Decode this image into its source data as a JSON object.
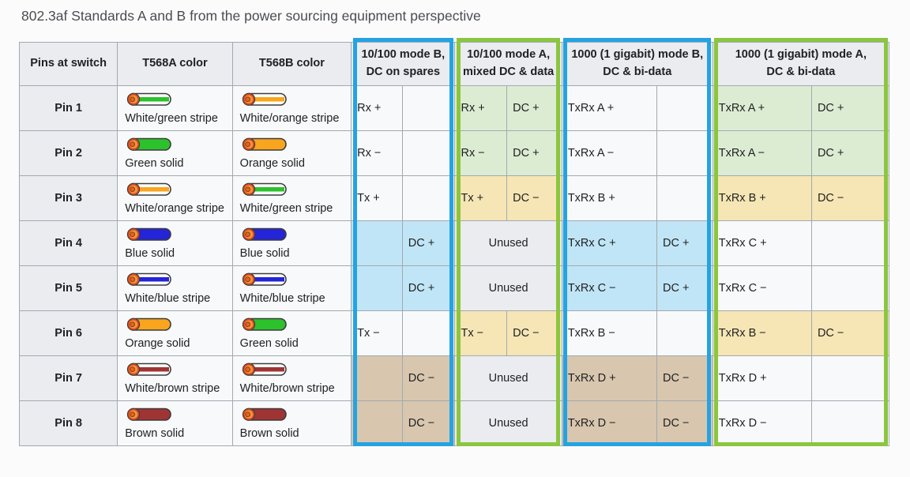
{
  "title": "802.3af Standards A and B from the power sourcing equipment perspective",
  "table": {
    "headers": {
      "pins": "Pins at switch",
      "t568a": "T568A color",
      "t568b": "T568B color",
      "groups": [
        {
          "id": "m10b",
          "lines": [
            "10/100 mode B,",
            "DC on spares"
          ],
          "outline": "blue"
        },
        {
          "id": "m10a",
          "lines": [
            "10/100 mode A,",
            "mixed DC & data"
          ],
          "outline": "green"
        },
        {
          "id": "m1000b",
          "lines": [
            "1000 (1 gigabit) mode B,",
            "DC & bi-data"
          ],
          "outline": "blue"
        },
        {
          "id": "m1000a",
          "lines": [
            "1000 (1 gigabit) mode A,",
            "DC & bi-data"
          ],
          "outline": "green"
        }
      ]
    },
    "unused_label": "Unused",
    "rows": [
      {
        "pin": "Pin 1",
        "t568a": {
          "style": "stripe",
          "color": "green",
          "label": "White/green stripe"
        },
        "t568b": {
          "style": "stripe",
          "color": "orange",
          "label": "White/orange stripe"
        },
        "modes": {
          "m10b": [
            {
              "t": "Rx +",
              "bg": "plain"
            },
            {
              "t": "",
              "bg": "plain"
            }
          ],
          "m10a": [
            {
              "t": "Rx +",
              "bg": "green"
            },
            {
              "t": "DC +",
              "bg": "green"
            }
          ],
          "m1000b": [
            {
              "t": "TxRx A +",
              "bg": "plain"
            },
            {
              "t": "",
              "bg": "plain"
            }
          ],
          "m1000a": [
            {
              "t": "TxRx A +",
              "bg": "green"
            },
            {
              "t": "DC +",
              "bg": "green"
            }
          ]
        }
      },
      {
        "pin": "Pin 2",
        "t568a": {
          "style": "solid",
          "color": "green",
          "label": "Green solid"
        },
        "t568b": {
          "style": "solid",
          "color": "orange",
          "label": "Orange solid"
        },
        "modes": {
          "m10b": [
            {
              "t": "Rx −",
              "bg": "plain"
            },
            {
              "t": "",
              "bg": "plain"
            }
          ],
          "m10a": [
            {
              "t": "Rx −",
              "bg": "green"
            },
            {
              "t": "DC +",
              "bg": "green"
            }
          ],
          "m1000b": [
            {
              "t": "TxRx A −",
              "bg": "plain"
            },
            {
              "t": "",
              "bg": "plain"
            }
          ],
          "m1000a": [
            {
              "t": "TxRx A −",
              "bg": "green"
            },
            {
              "t": "DC +",
              "bg": "green"
            }
          ]
        }
      },
      {
        "pin": "Pin 3",
        "t568a": {
          "style": "stripe",
          "color": "orange",
          "label": "White/orange stripe"
        },
        "t568b": {
          "style": "stripe",
          "color": "green",
          "label": "White/green stripe"
        },
        "modes": {
          "m10b": [
            {
              "t": "Tx +",
              "bg": "plain"
            },
            {
              "t": "",
              "bg": "plain"
            }
          ],
          "m10a": [
            {
              "t": "Tx +",
              "bg": "yellow"
            },
            {
              "t": "DC −",
              "bg": "yellow"
            }
          ],
          "m1000b": [
            {
              "t": "TxRx B +",
              "bg": "plain"
            },
            {
              "t": "",
              "bg": "plain"
            }
          ],
          "m1000a": [
            {
              "t": "TxRx B +",
              "bg": "yellow"
            },
            {
              "t": "DC −",
              "bg": "yellow"
            }
          ]
        }
      },
      {
        "pin": "Pin 4",
        "t568a": {
          "style": "solid",
          "color": "blue",
          "label": "Blue solid"
        },
        "t568b": {
          "style": "solid",
          "color": "blue",
          "label": "Blue solid"
        },
        "modes": {
          "m10b": [
            {
              "t": "",
              "bg": "blue"
            },
            {
              "t": "DC +",
              "bg": "blue"
            }
          ],
          "m10a": "unused",
          "m1000b": [
            {
              "t": "TxRx C +",
              "bg": "blue"
            },
            {
              "t": "DC +",
              "bg": "blue"
            }
          ],
          "m1000a": [
            {
              "t": "TxRx C +",
              "bg": "plain"
            },
            {
              "t": "",
              "bg": "plain"
            }
          ]
        }
      },
      {
        "pin": "Pin 5",
        "t568a": {
          "style": "stripe",
          "color": "blue",
          "label": "White/blue stripe"
        },
        "t568b": {
          "style": "stripe",
          "color": "blue",
          "label": "White/blue stripe"
        },
        "modes": {
          "m10b": [
            {
              "t": "",
              "bg": "blue"
            },
            {
              "t": "DC +",
              "bg": "blue"
            }
          ],
          "m10a": "unused",
          "m1000b": [
            {
              "t": "TxRx C −",
              "bg": "blue"
            },
            {
              "t": "DC +",
              "bg": "blue"
            }
          ],
          "m1000a": [
            {
              "t": "TxRx C −",
              "bg": "plain"
            },
            {
              "t": "",
              "bg": "plain"
            }
          ]
        }
      },
      {
        "pin": "Pin 6",
        "t568a": {
          "style": "solid",
          "color": "orange",
          "label": "Orange solid"
        },
        "t568b": {
          "style": "solid",
          "color": "green",
          "label": "Green solid"
        },
        "modes": {
          "m10b": [
            {
              "t": "Tx −",
              "bg": "plain"
            },
            {
              "t": "",
              "bg": "plain"
            }
          ],
          "m10a": [
            {
              "t": "Tx −",
              "bg": "yellow"
            },
            {
              "t": "DC −",
              "bg": "yellow"
            }
          ],
          "m1000b": [
            {
              "t": "TxRx B −",
              "bg": "plain"
            },
            {
              "t": "",
              "bg": "plain"
            }
          ],
          "m1000a": [
            {
              "t": "TxRx B −",
              "bg": "yellow"
            },
            {
              "t": "DC −",
              "bg": "yellow"
            }
          ]
        }
      },
      {
        "pin": "Pin 7",
        "t568a": {
          "style": "stripe",
          "color": "brown",
          "label": "White/brown stripe"
        },
        "t568b": {
          "style": "stripe",
          "color": "brown",
          "label": "White/brown stripe"
        },
        "modes": {
          "m10b": [
            {
              "t": "",
              "bg": "tan"
            },
            {
              "t": "DC −",
              "bg": "tan"
            }
          ],
          "m10a": "unused",
          "m1000b": [
            {
              "t": "TxRx D +",
              "bg": "tan"
            },
            {
              "t": "DC −",
              "bg": "tan"
            }
          ],
          "m1000a": [
            {
              "t": "TxRx D +",
              "bg": "plain"
            },
            {
              "t": "",
              "bg": "plain"
            }
          ]
        }
      },
      {
        "pin": "Pin 8",
        "t568a": {
          "style": "solid",
          "color": "brown",
          "label": "Brown solid"
        },
        "t568b": {
          "style": "solid",
          "color": "brown",
          "label": "Brown solid"
        },
        "modes": {
          "m10b": [
            {
              "t": "",
              "bg": "tan"
            },
            {
              "t": "DC −",
              "bg": "tan"
            }
          ],
          "m10a": "unused",
          "m1000b": [
            {
              "t": "TxRx D −",
              "bg": "tan"
            },
            {
              "t": "DC −",
              "bg": "tan"
            }
          ],
          "m1000a": [
            {
              "t": "TxRx D −",
              "bg": "plain"
            },
            {
              "t": "",
              "bg": "plain"
            }
          ]
        }
      }
    ]
  },
  "colors": {
    "page_bg": "#fbfbfc",
    "text": "#202122",
    "title": "#4a4d51",
    "border": "#a2a9b1",
    "cell_gray": "#eaecf0",
    "cell_plain": "#f8f9fa",
    "cell_green": "#dcecd3",
    "cell_yellow": "#f6e6b5",
    "cell_blue": "#c0e5f6",
    "cell_tan": "#d8c6ae",
    "outline_blue": "#24a3e3",
    "outline_green": "#8bc63e",
    "wire": {
      "green": "#2cc22c",
      "orange": "#f9a51d",
      "blue": "#2424d8",
      "brown": "#a03434",
      "outline": "#3c3c3c",
      "copper_inner": "#f5933d",
      "copper_ring": "#d9491f",
      "copper_core": "#e2661f"
    }
  }
}
